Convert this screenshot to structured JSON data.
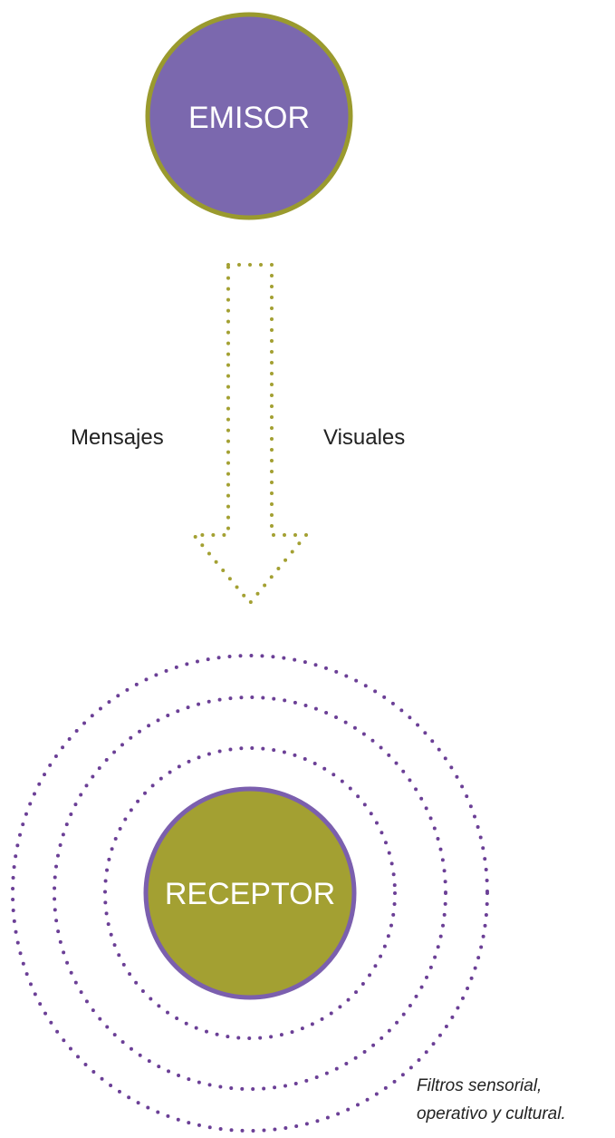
{
  "emitter": {
    "label": "EMISOR",
    "fill_color": "#7b68ae",
    "border_color": "#9a9a2e"
  },
  "receiver": {
    "label": "RECEPTOR",
    "fill_color": "#a3a032",
    "border_color": "#7b5fae"
  },
  "arrow": {
    "color": "#a3a032",
    "left_label": "Mensajes",
    "right_label": "Visuales"
  },
  "filters": {
    "ring_color": "#6b3f96",
    "ring_count": 3,
    "caption_line1": "Filtros sensorial,",
    "caption_line2": "operativo y cultural."
  }
}
